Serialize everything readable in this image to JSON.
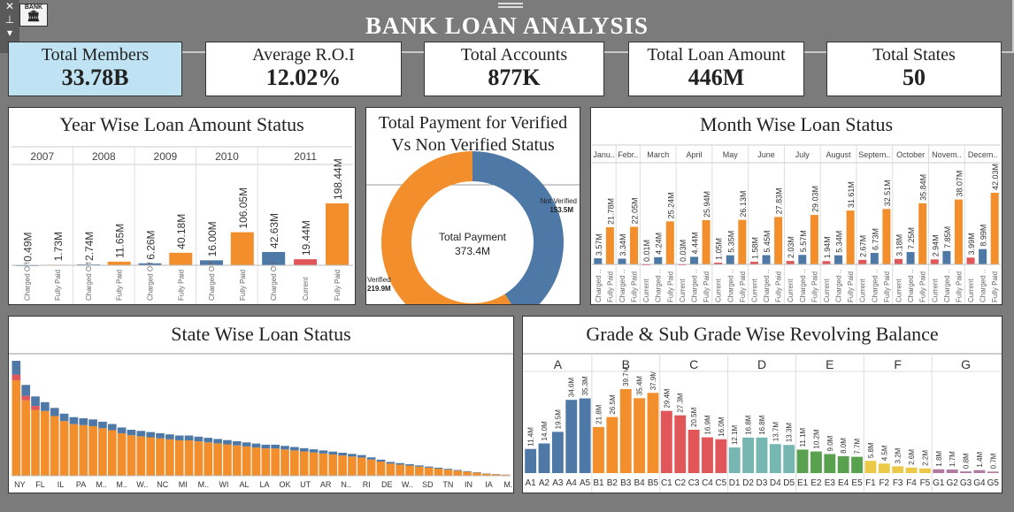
{
  "header": {
    "title": "BANK  LOAN  ANALYSIS",
    "logo_text": "BANK"
  },
  "kpis": [
    {
      "label": "Total Members",
      "value": "33.78B"
    },
    {
      "label": "Average R.O.I",
      "value": "12.02%"
    },
    {
      "label": "Total Accounts",
      "value": "877K"
    },
    {
      "label": "Total Loan Amount",
      "value": "446M"
    },
    {
      "label": "Total States",
      "value": "50"
    }
  ],
  "colors": {
    "charged_off": "#4e79a7",
    "fully_paid": "#f28e2b",
    "current": "#e15759",
    "kpi_active": "#bfe3f2",
    "A": "#4e79a7",
    "B": "#f28e2b",
    "C": "#e15759",
    "D": "#76b7b2",
    "E": "#59a14f",
    "F": "#edc948",
    "G": "#b07aa1"
  },
  "chart_data": [
    {
      "type": "bar",
      "title": "Year Wise Loan Amount Status",
      "groups": [
        {
          "year": "2007",
          "bars": [
            {
              "status": "Charged Off",
              "value": 0.49,
              "label": "0.49M"
            },
            {
              "status": "Fully Paid",
              "value": 1.73,
              "label": "1.73M"
            }
          ]
        },
        {
          "year": "2008",
          "bars": [
            {
              "status": "Charged Off",
              "value": 2.74,
              "label": "2.74M"
            },
            {
              "status": "Fully Paid",
              "value": 11.65,
              "label": "11.65M"
            }
          ]
        },
        {
          "year": "2009",
          "bars": [
            {
              "status": "Charged Off",
              "value": 6.26,
              "label": "6.26M"
            },
            {
              "status": "Fully Paid",
              "value": 40.18,
              "label": "40.18M"
            }
          ]
        },
        {
          "year": "2010",
          "bars": [
            {
              "status": "Charged Off",
              "value": 16.0,
              "label": "16.00M"
            },
            {
              "status": "Fully Paid",
              "value": 106.05,
              "label": "106.05M"
            }
          ]
        },
        {
          "year": "2011",
          "bars": [
            {
              "status": "Charged Off",
              "value": 42.63,
              "label": "42.63M"
            },
            {
              "status": "Current",
              "value": 19.44,
              "label": "19.44M"
            },
            {
              "status": "Fully Paid",
              "value": 198.44,
              "label": "198.44M"
            }
          ]
        }
      ]
    },
    {
      "type": "pie",
      "title": "Total Payment for Verified Vs  Non Verified Status",
      "center_label": "Total Payment",
      "center_value": "373.4M",
      "slices": [
        {
          "name": "Verified",
          "value": 219.9,
          "label": "219.9M"
        },
        {
          "name": "Not Verified",
          "value": 153.5,
          "label": "153.5M"
        }
      ]
    },
    {
      "type": "bar",
      "title": "Month Wise Loan Status",
      "months": [
        {
          "name": "Janu..",
          "bars": [
            {
              "status": "Charged ..",
              "value": 3.57,
              "label": "3.57M"
            },
            {
              "status": "Fully Paid",
              "value": 21.78,
              "label": "21.78M"
            }
          ]
        },
        {
          "name": "Febr..",
          "bars": [
            {
              "status": "Charged ..",
              "value": 3.34,
              "label": "3.34M"
            },
            {
              "status": "Fully Paid",
              "value": 22.05,
              "label": "22.05M"
            }
          ]
        },
        {
          "name": "March",
          "bars": [
            {
              "status": "Current",
              "value": 0.01,
              "label": "0.01M"
            },
            {
              "status": "Charged ..",
              "value": 4.24,
              "label": "4.24M"
            },
            {
              "status": "Fully Paid",
              "value": 25.24,
              "label": "25.24M"
            }
          ]
        },
        {
          "name": "April",
          "bars": [
            {
              "status": "Current",
              "value": 0.03,
              "label": "0.03M"
            },
            {
              "status": "Charged ..",
              "value": 4.44,
              "label": "4.44M"
            },
            {
              "status": "Fully Paid",
              "value": 25.94,
              "label": "25.94M"
            }
          ]
        },
        {
          "name": "May",
          "bars": [
            {
              "status": "Current",
              "value": 1.05,
              "label": "1.05M"
            },
            {
              "status": "Charged ..",
              "value": 5.35,
              "label": "5.35M"
            },
            {
              "status": "Fully Paid",
              "value": 26.13,
              "label": "26.13M"
            }
          ]
        },
        {
          "name": "June",
          "bars": [
            {
              "status": "Current",
              "value": 1.58,
              "label": "1.58M"
            },
            {
              "status": "Charged ..",
              "value": 5.45,
              "label": "5.45M"
            },
            {
              "status": "Fully Paid",
              "value": 27.83,
              "label": "27.83M"
            }
          ]
        },
        {
          "name": "July",
          "bars": [
            {
              "status": "Current",
              "value": 2.03,
              "label": "2.03M"
            },
            {
              "status": "Charged ..",
              "value": 5.57,
              "label": "5.57M"
            },
            {
              "status": "Fully Paid",
              "value": 29.03,
              "label": "29.03M"
            }
          ]
        },
        {
          "name": "August",
          "bars": [
            {
              "status": "Current",
              "value": 1.94,
              "label": "1.94M"
            },
            {
              "status": "Charged ..",
              "value": 5.34,
              "label": "5.34M"
            },
            {
              "status": "Fully Paid",
              "value": 31.61,
              "label": "31.61M"
            }
          ]
        },
        {
          "name": "Septem..",
          "bars": [
            {
              "status": "Current",
              "value": 2.67,
              "label": "2.67M"
            },
            {
              "status": "Charged ..",
              "value": 6.73,
              "label": "6.73M"
            },
            {
              "status": "Fully Paid",
              "value": 32.51,
              "label": "32.51M"
            }
          ]
        },
        {
          "name": "October",
          "bars": [
            {
              "status": "Current",
              "value": 3.18,
              "label": "3.18M"
            },
            {
              "status": "Charged ..",
              "value": 7.25,
              "label": "7.25M"
            },
            {
              "status": "Fully Paid",
              "value": 35.84,
              "label": "35.84M"
            }
          ]
        },
        {
          "name": "Novem..",
          "bars": [
            {
              "status": "Current",
              "value": 2.94,
              "label": "2.94M"
            },
            {
              "status": "Charged ..",
              "value": 7.85,
              "label": "7.85M"
            },
            {
              "status": "Fully Paid",
              "value": 38.07,
              "label": "38.07M"
            }
          ]
        },
        {
          "name": "Decem..",
          "bars": [
            {
              "status": "Current",
              "value": 3.99,
              "label": "3.99M"
            },
            {
              "status": "Charged ..",
              "value": 8.99,
              "label": "8.99M"
            },
            {
              "status": "Fully Paid",
              "value": 42.03,
              "label": "42.03M"
            }
          ]
        }
      ]
    },
    {
      "type": "bar",
      "title": "State Wise Loan Status",
      "stacked": true,
      "tick_labels": [
        "NY",
        "FL",
        "IL",
        "PA",
        "M..",
        "M..",
        "W..",
        "NC",
        "MI",
        "M..",
        "WI",
        "AL",
        "LA",
        "OK",
        "UT",
        "AR",
        "N..",
        "RI",
        "DE",
        "W..",
        "SD",
        "TN",
        "IN",
        "IA",
        "M.."
      ],
      "ymax": 100,
      "values": [
        100,
        79,
        69,
        64,
        59,
        54,
        51,
        50,
        49,
        47,
        45,
        42,
        40,
        39,
        38,
        37,
        36,
        35,
        35,
        34,
        33,
        32,
        31,
        30,
        29,
        28,
        27,
        27,
        26,
        25,
        24,
        23,
        22,
        21,
        20,
        19,
        18,
        16,
        14,
        12,
        11,
        10,
        9,
        8,
        7,
        6,
        5,
        4,
        3,
        2,
        1.5,
        1
      ]
    },
    {
      "type": "bar",
      "title": "Grade & Sub Grade Wise Revolving Balance",
      "grades": [
        {
          "grade": "A",
          "subs": [
            {
              "name": "A1",
              "value": 11.4,
              "label": "11.4M"
            },
            {
              "name": "A2",
              "value": 14.0,
              "label": "14.0M"
            },
            {
              "name": "A3",
              "value": 19.5,
              "label": "19.5M"
            },
            {
              "name": "A4",
              "value": 34.6,
              "label": "34.6M"
            },
            {
              "name": "A5",
              "value": 35.3,
              "label": "35.3M"
            }
          ]
        },
        {
          "grade": "B",
          "subs": [
            {
              "name": "B1",
              "value": 21.8,
              "label": "21.8M"
            },
            {
              "name": "B2",
              "value": 26.5,
              "label": "26.5M"
            },
            {
              "name": "B3",
              "value": 39.7,
              "label": "39.7M"
            },
            {
              "name": "B4",
              "value": 35.4,
              "label": "35.4M"
            },
            {
              "name": "B5",
              "value": 37.9,
              "label": "37.9M"
            }
          ]
        },
        {
          "grade": "C",
          "subs": [
            {
              "name": "C1",
              "value": 29.4,
              "label": "29.4M"
            },
            {
              "name": "C2",
              "value": 27.3,
              "label": "27.3M"
            },
            {
              "name": "C3",
              "value": 20.5,
              "label": "20.5M"
            },
            {
              "name": "C4",
              "value": 16.9,
              "label": "16.9M"
            },
            {
              "name": "C5",
              "value": 16.0,
              "label": "16.0M"
            }
          ]
        },
        {
          "grade": "D",
          "subs": [
            {
              "name": "D1",
              "value": 12.1,
              "label": "12.1M"
            },
            {
              "name": "D2",
              "value": 16.8,
              "label": "16.8M"
            },
            {
              "name": "D3",
              "value": 16.8,
              "label": "16.8M"
            },
            {
              "name": "D4",
              "value": 13.7,
              "label": "13.7M"
            },
            {
              "name": "D5",
              "value": 13.3,
              "label": "13.3M"
            }
          ]
        },
        {
          "grade": "E",
          "subs": [
            {
              "name": "E1",
              "value": 11.1,
              "label": "11.1M"
            },
            {
              "name": "E2",
              "value": 10.2,
              "label": "10.2M"
            },
            {
              "name": "E3",
              "value": 9.0,
              "label": "9.0M"
            },
            {
              "name": "E4",
              "value": 8.0,
              "label": "8.0M"
            },
            {
              "name": "E5",
              "value": 7.7,
              "label": "7.7M"
            }
          ]
        },
        {
          "grade": "F",
          "subs": [
            {
              "name": "F1",
              "value": 5.8,
              "label": "5.8M"
            },
            {
              "name": "F2",
              "value": 4.5,
              "label": "4.5M"
            },
            {
              "name": "F3",
              "value": 3.2,
              "label": "3.2M"
            },
            {
              "name": "F4",
              "value": 2.6,
              "label": "2.6M"
            },
            {
              "name": "F5",
              "value": 2.2,
              "label": "2.2M"
            }
          ]
        },
        {
          "grade": "G",
          "subs": [
            {
              "name": "G1",
              "value": 1.8,
              "label": "1.8M"
            },
            {
              "name": "G2",
              "value": 1.7,
              "label": "1.7M"
            },
            {
              "name": "G3",
              "value": 0.8,
              "label": "0.8M"
            },
            {
              "name": "G4",
              "value": 1.4,
              "label": "1.4M"
            },
            {
              "name": "G5",
              "value": 0.7,
              "label": "0.7M"
            }
          ]
        }
      ]
    }
  ]
}
